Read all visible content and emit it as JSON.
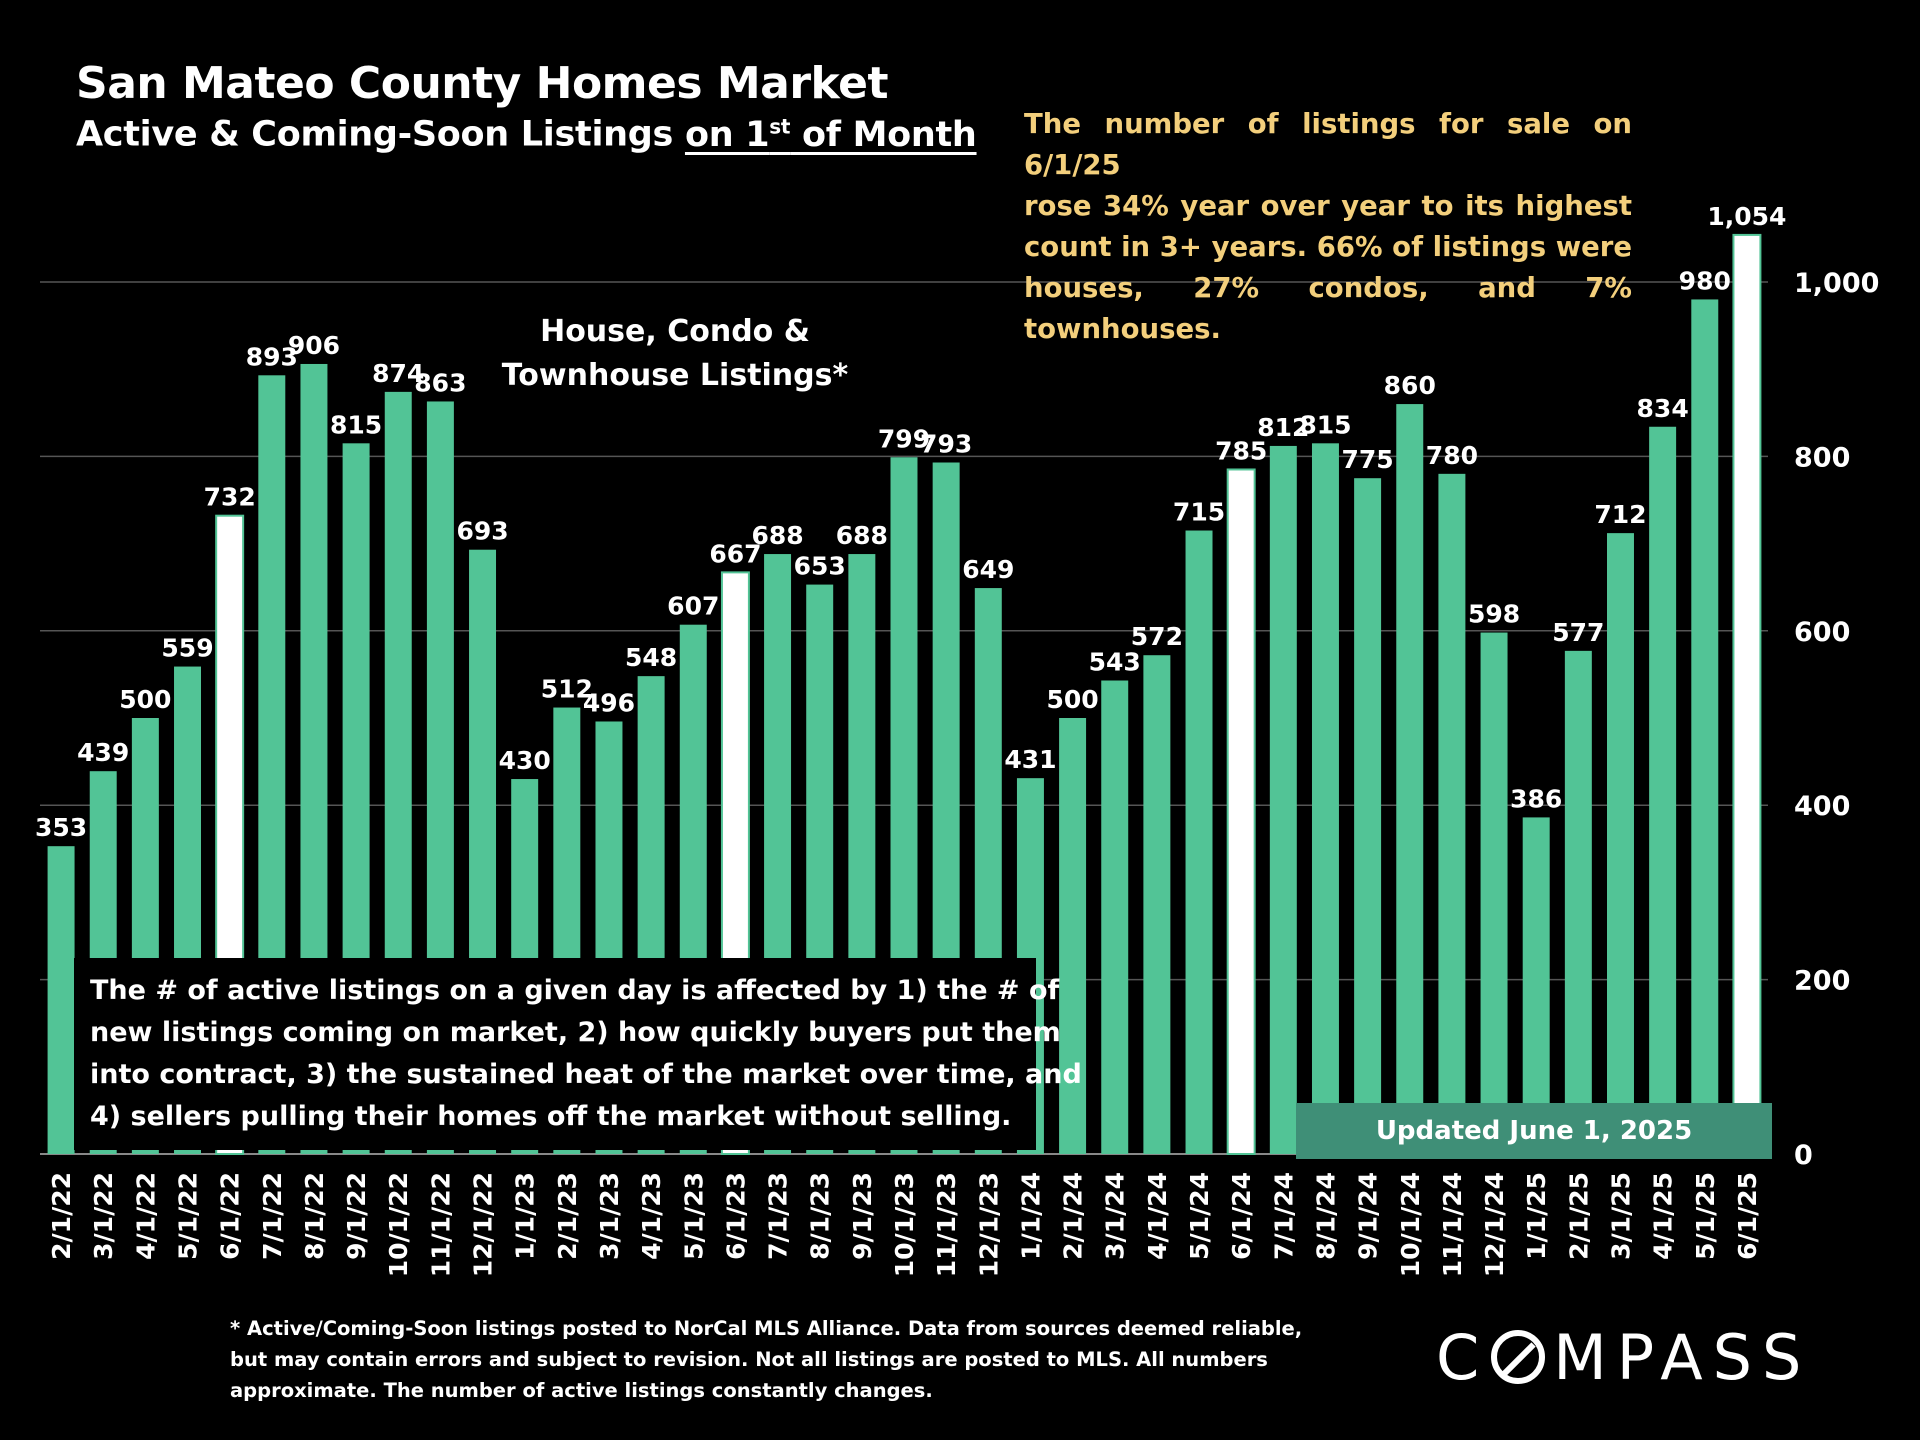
{
  "title": "San Mateo County Homes Market",
  "subtitle_pre": "Active & Coming-Soon Listings ",
  "subtitle_ul": "on 1",
  "subtitle_sup": "st",
  "subtitle_post": " of Month",
  "callout_lines": [
    "The number of listings for sale on 6/1/25",
    "rose 34% year over year to its highest",
    "count in 3+ years. 66% of listings were",
    "houses, 27% condos, and 7% townhouses."
  ],
  "series_label_lines": [
    "House, Condo &",
    "Townhouse Listings*"
  ],
  "info_lines": [
    "The # of active listings on a given day is affected by 1) the # of",
    "new listings coming on market, 2) how quickly buyers put them",
    "into contract, 3) the sustained heat of the market over time, and",
    "4) sellers pulling their homes off the market without selling."
  ],
  "updated": "Updated June 1, 2025",
  "footnote_lines": [
    "* Active/Coming-Soon listings posted to NorCal MLS Alliance.  Data from sources deemed reliable,",
    "but may contain errors and subject to revision.  Not all listings are posted to MLS. All numbers",
    "approximate. The number of active listings constantly changes."
  ],
  "logo": {
    "pre": "C",
    "post": "MPASS"
  },
  "colors": {
    "bar": "#52c496",
    "highlight": "#ffffff",
    "callout": "#f3cf7c",
    "badge": "#3f8f77"
  },
  "chart_data": {
    "type": "bar",
    "categories": [
      "2/1/22",
      "3/1/22",
      "4/1/22",
      "5/1/22",
      "6/1/22",
      "7/1/22",
      "8/1/22",
      "9/1/22",
      "10/1/22",
      "11/1/22",
      "12/1/22",
      "1/1/23",
      "2/1/23",
      "3/1/23",
      "4/1/23",
      "5/1/23",
      "6/1/23",
      "7/1/23",
      "8/1/23",
      "9/1/23",
      "10/1/23",
      "11/1/23",
      "12/1/23",
      "1/1/24",
      "2/1/24",
      "3/1/24",
      "4/1/24",
      "5/1/24",
      "6/1/24",
      "7/1/24",
      "8/1/24",
      "9/1/24",
      "10/1/24",
      "11/1/24",
      "12/1/24",
      "1/1/25",
      "2/1/25",
      "3/1/25",
      "4/1/25",
      "5/1/25",
      "6/1/25"
    ],
    "values": [
      353,
      439,
      500,
      559,
      732,
      893,
      906,
      815,
      874,
      863,
      693,
      430,
      512,
      496,
      548,
      607,
      667,
      688,
      653,
      688,
      799,
      793,
      649,
      431,
      500,
      543,
      572,
      715,
      785,
      812,
      815,
      775,
      860,
      780,
      598,
      386,
      577,
      712,
      834,
      980,
      1054
    ],
    "data_labels": [
      "353",
      "439",
      "500",
      "559",
      "732",
      "893",
      "906",
      "815",
      "874",
      "863",
      "693",
      "430",
      "512",
      "496",
      "548",
      "607",
      "667",
      "688",
      "653",
      "688",
      "799",
      "793",
      "649",
      "431",
      "500",
      "543",
      "572",
      "715",
      "785",
      "812",
      "815",
      "775",
      "860",
      "780",
      "598",
      "386",
      "577",
      "712",
      "834",
      "980",
      "1,054"
    ],
    "highlighted": [
      "6/1/22",
      "6/1/23",
      "6/1/24",
      "6/1/25"
    ],
    "ylim": [
      0,
      1080
    ],
    "yticks": [
      0,
      200,
      400,
      600,
      800,
      1000
    ],
    "ytick_labels": [
      "0",
      "200",
      "400",
      "600",
      "800",
      "1,000"
    ],
    "y_axis_side": "right",
    "grid": true
  }
}
